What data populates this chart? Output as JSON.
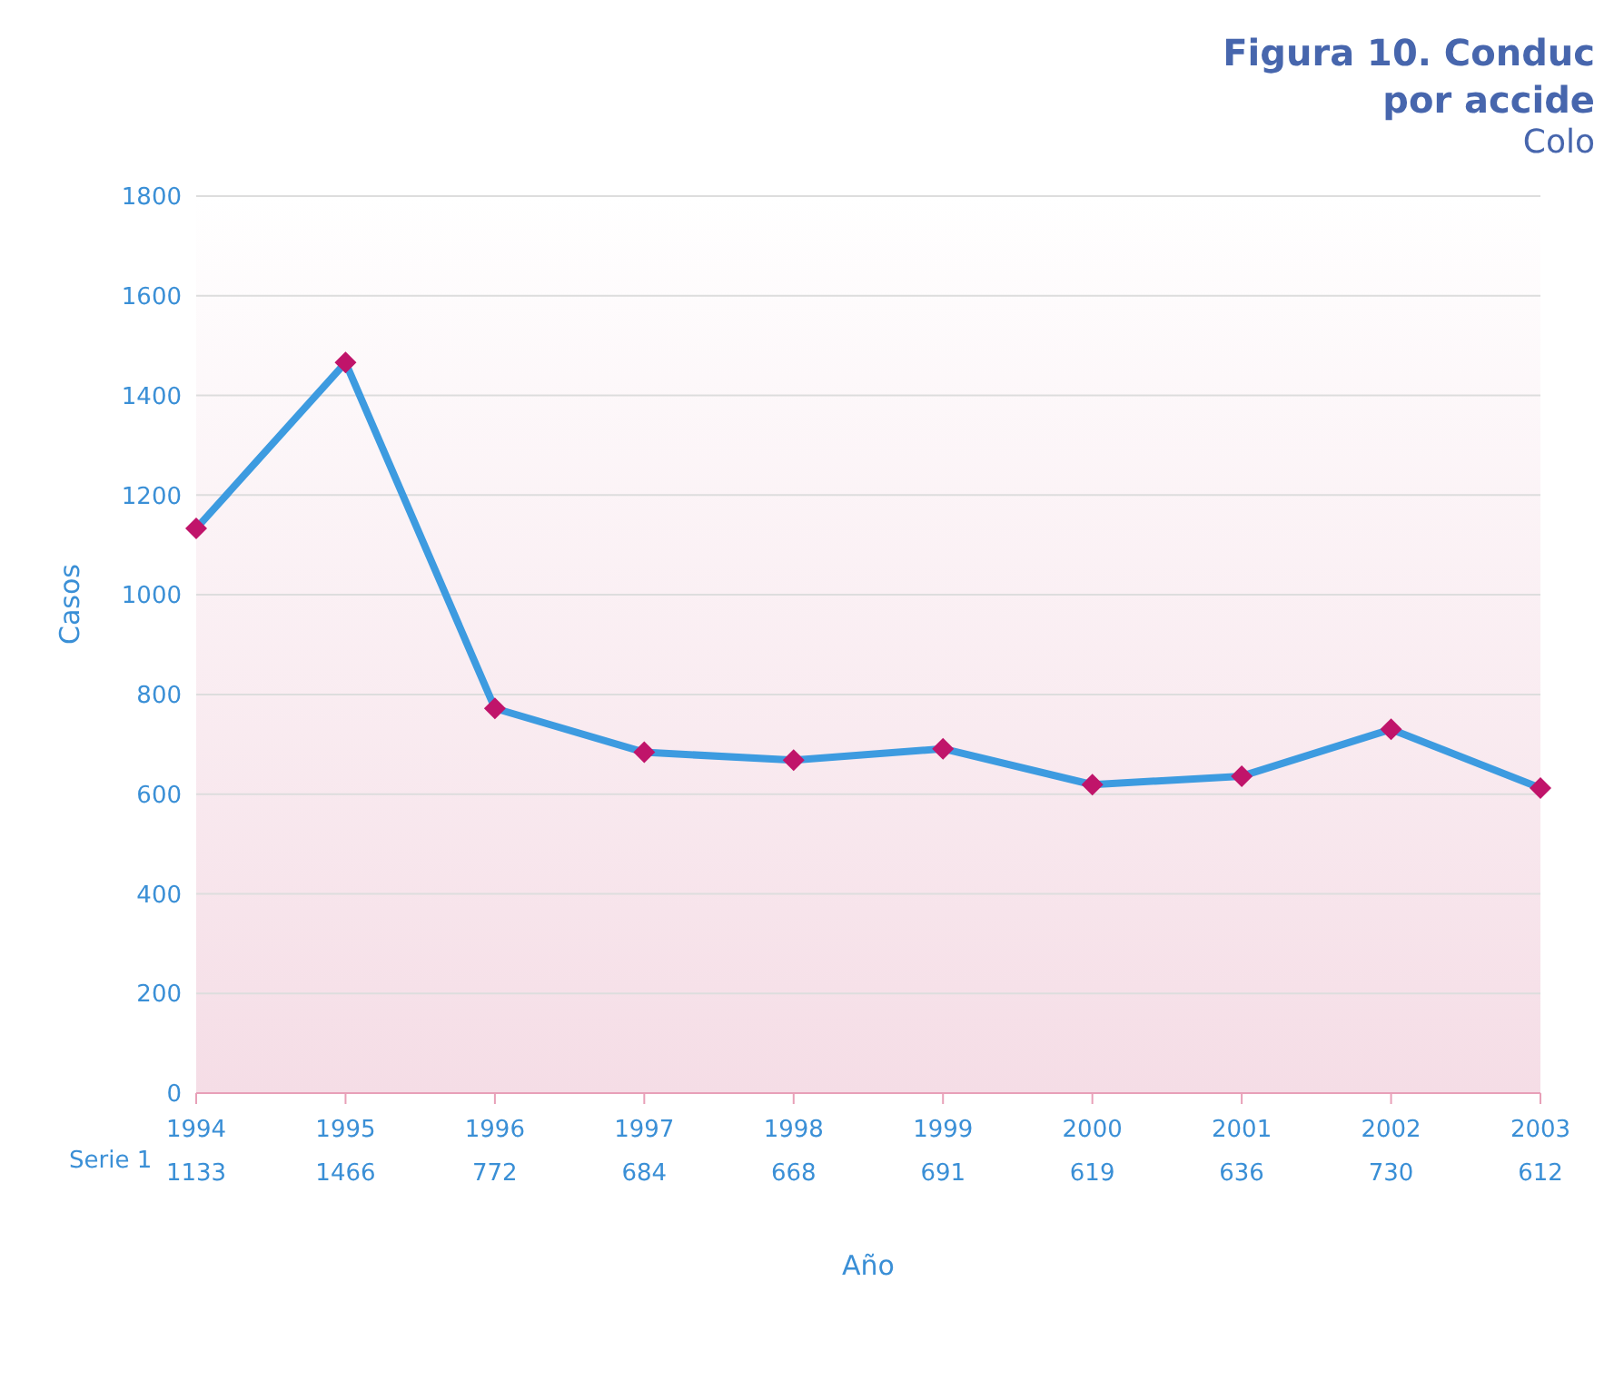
{
  "chart_data": {
    "type": "line",
    "title": "Figura 10. Conduc\npor accide",
    "subtitle": "Colo",
    "xlabel": "Año",
    "ylabel": "Casos",
    "categories": [
      "1994",
      "1995",
      "1996",
      "1997",
      "1998",
      "1999",
      "2000",
      "2001",
      "2002",
      "2003"
    ],
    "series": [
      {
        "name": "Serie 1",
        "color": "#3d9be0",
        "values": [
          1133,
          1466,
          772,
          684,
          668,
          691,
          619,
          636,
          730,
          612
        ]
      }
    ],
    "ylim": [
      0,
      1800
    ],
    "yticks": [
      0,
      200,
      400,
      600,
      800,
      1000,
      1200,
      1400,
      1600,
      1800
    ],
    "grid": "y",
    "marker": "diamond",
    "data_labels": true
  }
}
